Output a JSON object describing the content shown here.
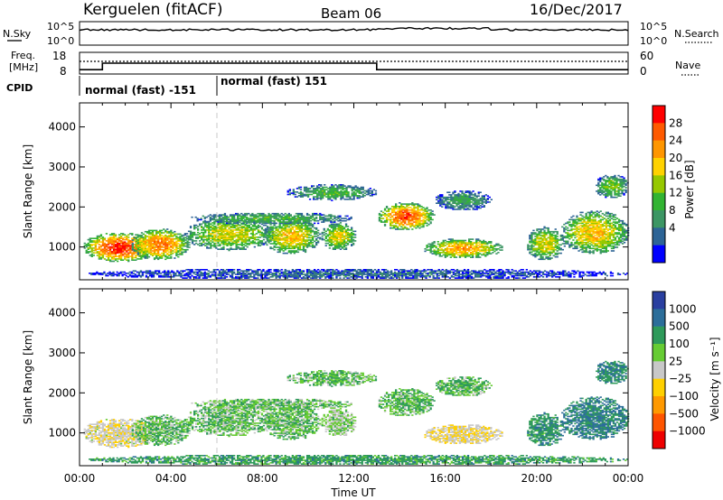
{
  "header": {
    "station": "Kerguelen (fitACF)",
    "beam": "Beam 06",
    "date": "16/Dec/2017"
  },
  "noise_panel": {
    "left_label": "N.Sky",
    "right_label": "N.Search",
    "left_ticks": [
      "10^5",
      "10^0"
    ],
    "right_ticks": [
      "10^5",
      "10^0"
    ]
  },
  "freq_panel": {
    "left_label_1": "Freq.",
    "left_label_2": "[MHz]",
    "right_label": "Nave",
    "left_ticks": [
      "18",
      "8"
    ],
    "right_ticks": [
      "60",
      "0"
    ]
  },
  "cpid": {
    "label": "CPID",
    "segments": [
      {
        "label": "normal (fast) -151",
        "start_hour": 0,
        "end_hour": 6
      },
      {
        "label": "normal (fast) 151",
        "start_hour": 6,
        "end_hour": 24
      }
    ]
  },
  "power_panel": {
    "ylabel": "Slant Range [km]",
    "yticks": [
      "4000",
      "3000",
      "2000",
      "1000"
    ],
    "colorbar_label": "Power [dB]",
    "colorbar_ticks": [
      "28",
      "24",
      "20",
      "16",
      "12",
      "8",
      "4"
    ],
    "colors": [
      "#ff0000",
      "#ff5a00",
      "#ff9600",
      "#ffd200",
      "#96c800",
      "#32b432",
      "#3c9664",
      "#2d6496",
      "#0000ff"
    ]
  },
  "velocity_panel": {
    "ylabel": "Slant Range [km]",
    "yticks": [
      "4000",
      "3000",
      "2000",
      "1000"
    ],
    "colorbar_label": "Velocity [m s⁻¹]",
    "colorbar_ticks": [
      "1000",
      "500",
      "100",
      "25",
      "−25",
      "−100",
      "−500",
      "−1000"
    ],
    "colors": [
      "#2a3fa0",
      "#2c6e9a",
      "#2e9a5a",
      "#66cc33",
      "#c8c8c8",
      "#ffd000",
      "#ff9900",
      "#ff5500",
      "#ee0000"
    ]
  },
  "x_axis": {
    "title": "Time UT",
    "ticks": [
      "00:00",
      "04:00",
      "08:00",
      "12:00",
      "16:00",
      "20:00",
      "00:00"
    ]
  },
  "chart_data": {
    "type": "heatmap",
    "title": "Kerguelen (fitACF)  Beam 06  16/Dec/2017",
    "xlabel": "Time UT",
    "ylabel": "Slant Range [km]",
    "xlim_hours": [
      0,
      24
    ],
    "ylim_km": [
      180,
      4600
    ],
    "power_range_db": [
      0,
      32
    ],
    "velocity_range_ms": [
      -1200,
      1200
    ],
    "frequency_mhz": [
      {
        "start_hour": 0,
        "end_hour": 1,
        "value": 10
      },
      {
        "start_hour": 1,
        "end_hour": 13,
        "value": 13
      },
      {
        "start_hour": 13,
        "end_hour": 24,
        "value": 10
      }
    ],
    "scatter_regions": [
      {
        "name": "near range 1",
        "t0": 0.1,
        "t1": 3.3,
        "r0": 600,
        "r1": 1350,
        "power": 28,
        "velocity": -80
      },
      {
        "name": "near range 2",
        "t0": 2.2,
        "t1": 4.8,
        "r0": 650,
        "r1": 1450,
        "power": 24,
        "velocity": 15
      },
      {
        "name": "near range 3",
        "t0": 4.5,
        "t1": 8.5,
        "r0": 900,
        "r1": 1700,
        "power": 18,
        "velocity": 10
      },
      {
        "name": "near range 4",
        "t0": 8.0,
        "t1": 10.5,
        "r0": 800,
        "r1": 1700,
        "power": 20,
        "velocity": 10
      },
      {
        "name": "near range 5",
        "t0": 10.5,
        "t1": 12.1,
        "r0": 900,
        "r1": 1600,
        "power": 18,
        "velocity": -20
      },
      {
        "name": "mid range 1",
        "t0": 4.8,
        "t1": 12.0,
        "r0": 1550,
        "r1": 1850,
        "power": 12,
        "velocity": 5
      },
      {
        "name": "far range 1",
        "t0": 9.0,
        "t1": 13.0,
        "r0": 2150,
        "r1": 2550,
        "power": 12,
        "velocity": 10
      },
      {
        "name": "bright wedge",
        "t0": 13.0,
        "t1": 15.5,
        "r0": 1400,
        "r1": 2100,
        "power": 26,
        "velocity": 20
      },
      {
        "name": "drifting arc",
        "t0": 15.5,
        "t1": 18.0,
        "r0": 1900,
        "r1": 2400,
        "power": 10,
        "velocity": 15
      },
      {
        "name": "afternoon patch",
        "t0": 15.0,
        "t1": 18.5,
        "r0": 700,
        "r1": 1200,
        "power": 22,
        "velocity": -90
      },
      {
        "name": "evening 1",
        "t0": 19.5,
        "t1": 21.2,
        "r0": 650,
        "r1": 1500,
        "power": 18,
        "velocity": 80
      },
      {
        "name": "evening 2",
        "t0": 21.0,
        "t1": 24.0,
        "r0": 800,
        "r1": 1900,
        "power": 20,
        "velocity": 110
      },
      {
        "name": "late far",
        "t0": 22.5,
        "t1": 24.0,
        "r0": 2200,
        "r1": 2800,
        "power": 14,
        "velocity": 90
      },
      {
        "name": "ground band",
        "t0": 0.0,
        "t1": 24.0,
        "r0": 180,
        "r1": 450,
        "power": 6,
        "velocity": 60
      }
    ]
  }
}
